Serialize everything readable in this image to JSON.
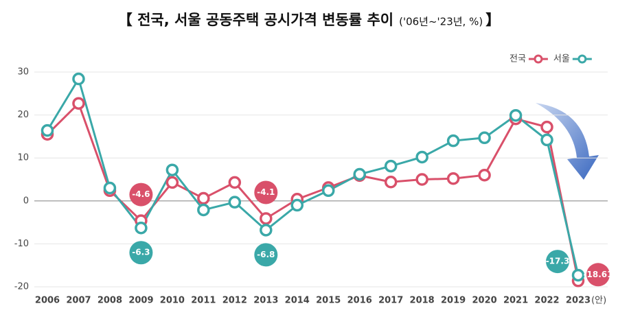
{
  "chart_data": {
    "type": "line",
    "title": "【 전국, 서울 공동주택 공시가격 변동률 추이",
    "subtitle": "('06년~'23년, %)",
    "title_end": "】",
    "categories": [
      "2006",
      "2007",
      "2008",
      "2009",
      "2010",
      "2011",
      "2012",
      "2013",
      "2014",
      "2015",
      "2016",
      "2017",
      "2018",
      "2019",
      "2020",
      "2021",
      "2022",
      "2023"
    ],
    "category_note": "(안)",
    "highlight_categories": [
      3,
      7,
      17
    ],
    "highlight_color": "#d9506a",
    "series": [
      {
        "name": "전국",
        "color": "#d9506a",
        "values": [
          15.5,
          22.7,
          2.4,
          -4.6,
          4.3,
          0.6,
          4.3,
          -4.1,
          0.4,
          3.1,
          5.9,
          4.4,
          5.0,
          5.2,
          6.0,
          19.1,
          17.2,
          -18.61
        ]
      },
      {
        "name": "서울",
        "color": "#3aa8a8",
        "values": [
          16.4,
          28.4,
          3.0,
          -6.3,
          7.2,
          -2.1,
          -0.3,
          -6.8,
          -1.0,
          2.4,
          6.2,
          8.1,
          10.2,
          14.0,
          14.7,
          19.9,
          14.2,
          -17.3
        ]
      }
    ],
    "labeled_indices": [
      3,
      7,
      17
    ],
    "ylim": [
      -20,
      30
    ],
    "yticks": [
      -20,
      -10,
      0,
      10,
      20,
      30
    ],
    "grid": true
  }
}
